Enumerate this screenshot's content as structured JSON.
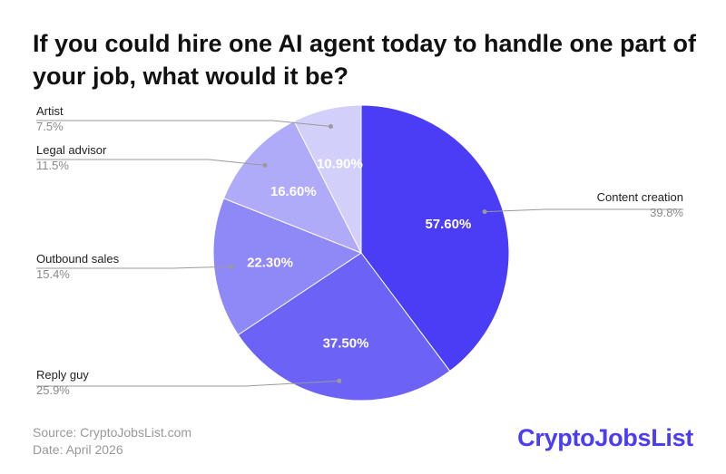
{
  "chart_data": {
    "type": "pie",
    "title": "If you could hire one AI agent today to handle one part of your job, what would it be?",
    "slices": [
      {
        "label": "Content creation",
        "value": 39.8,
        "value_label": "39.8%",
        "inner_label": "57.60%",
        "color": "#4b3df5"
      },
      {
        "label": "Reply guy",
        "value": 25.9,
        "value_label": "25.9%",
        "inner_label": "37.50%",
        "color": "#6c63f6"
      },
      {
        "label": "Outbound sales",
        "value": 15.4,
        "value_label": "15.4%",
        "inner_label": "22.30%",
        "color": "#8f88f7"
      },
      {
        "label": "Legal advisor",
        "value": 11.5,
        "value_label": "11.5%",
        "inner_label": "16.60%",
        "color": "#b0abf8"
      },
      {
        "label": "Artist",
        "value": 7.5,
        "value_label": "7.5%",
        "inner_label": "10.90%",
        "color": "#d2cffb"
      }
    ],
    "start": "12 o'clock",
    "direction": "clockwise",
    "legend": "none"
  },
  "footer": {
    "source": "Source: CryptoJobsList.com",
    "date": "Date: April 2026"
  },
  "brand": {
    "logo_text": "CryptoJobsList",
    "accent": "#4b3df5"
  }
}
